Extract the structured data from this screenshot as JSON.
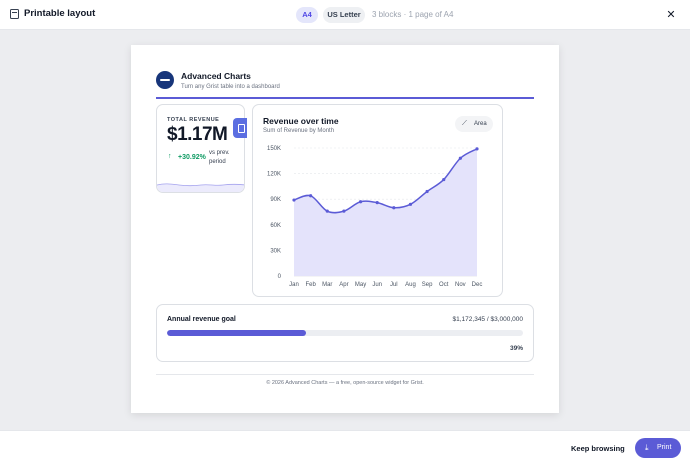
{
  "header": {
    "title": "Printable layout",
    "page_sizes": [
      "A4",
      "US Letter"
    ],
    "selected_size": "A4",
    "summary": "3 blocks · 1 page of A4",
    "close_glyph": "✕"
  },
  "page": {
    "brand": "Advanced Charts",
    "tagline": "Turn any Grist table into a dashboard",
    "kpi": {
      "label": "TOTAL REVENUE",
      "value": "$1.17M",
      "change": "+30.92%",
      "period": "vs prev. period",
      "arrow": "↑"
    },
    "chart": {
      "title": "Revenue over time",
      "subtitle": "Sum of Revenue by Month",
      "toggle_label": "Area",
      "toggle_icon": "trend-icon"
    },
    "goal": {
      "title": "Annual revenue goal",
      "amount": "$1,172,345 / $3,000,000",
      "percent_label": "39%",
      "fraction": 0.39
    },
    "footer": "© 2026 Advanced Charts — a free, open-source widget for Grist."
  },
  "actions": {
    "keep_browsing": "Keep browsing",
    "print": "Print"
  },
  "colors": {
    "accent": "#5b5bd6",
    "positive": "#0f9b63",
    "area_fill": "#e4e3fb"
  },
  "chart_data": {
    "type": "area",
    "title": "Revenue over time",
    "subtitle": "Sum of Revenue by Month",
    "categories": [
      "Jan",
      "Feb",
      "Mar",
      "Apr",
      "May",
      "Jun",
      "Jul",
      "Aug",
      "Sep",
      "Oct",
      "Nov",
      "Dec"
    ],
    "values": [
      89000,
      94000,
      76000,
      76000,
      87000,
      86000,
      80000,
      84000,
      99000,
      113000,
      138000,
      149000
    ],
    "yticks": [
      0,
      30000,
      60000,
      90000,
      120000,
      150000
    ],
    "ytick_labels": [
      "0",
      "30K",
      "60K",
      "90K",
      "120K",
      "150K"
    ],
    "ylim": [
      0,
      150000
    ],
    "grid": true,
    "legend": "none"
  }
}
